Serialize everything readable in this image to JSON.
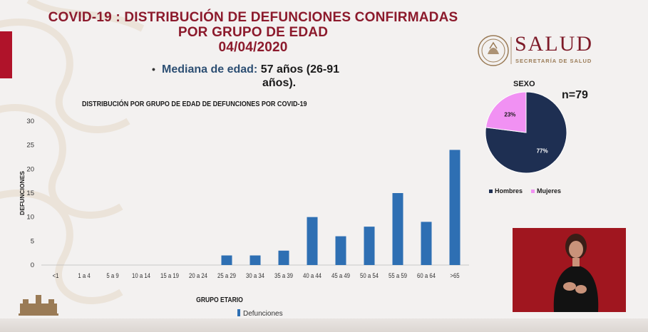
{
  "title": {
    "line1": "COVID-19 : DISTRIBUCIÓN DE DEFUNCIONES CONFIRMADAS",
    "line2": "POR GRUPO DE EDAD",
    "line3": "04/04/2020"
  },
  "median": {
    "label": "Mediana de edad:",
    "value_line1": "57 años (26-91",
    "value_line2": "años)."
  },
  "logo": {
    "name": "SALUD",
    "subtitle": "SECRETARÍA DE SALUD"
  },
  "chart_data": [
    {
      "type": "bar",
      "title": "DISTRIBUCIÓN POR GRUPO DE EDAD DE DEFUNCIONES POR COVID-19",
      "xlabel": "GRUPO ETARIO",
      "ylabel": "DEFUNCIONES",
      "categories": [
        "<1",
        "1 a 4",
        "5 a 9",
        "10 a 14",
        "15 a 19",
        "20 a 24",
        "25 a 29",
        "30 a 34",
        "35 a 39",
        "40 a 44",
        "45 a 49",
        "50 a 54",
        "55 a 59",
        "60 a 64",
        ">65"
      ],
      "series": [
        {
          "name": "Defunciones",
          "values": [
            0,
            0,
            0,
            0,
            0,
            0,
            2,
            2,
            3,
            10,
            6,
            8,
            15,
            9,
            24
          ],
          "color": "#2e6fb3"
        }
      ],
      "ylim": [
        0,
        30
      ],
      "yticks": [
        0,
        5,
        10,
        15,
        20,
        25,
        30
      ],
      "grid": false,
      "legend": "bottom"
    },
    {
      "type": "pie",
      "title": "SEXO",
      "annotation": "n=79",
      "labels": [
        "Hombres",
        "Mujeres"
      ],
      "values": [
        77,
        23
      ],
      "value_labels": [
        "77%",
        "23%"
      ],
      "colors": [
        "#1e2f52",
        "#f191f3"
      ],
      "legend": "bottom"
    }
  ]
}
